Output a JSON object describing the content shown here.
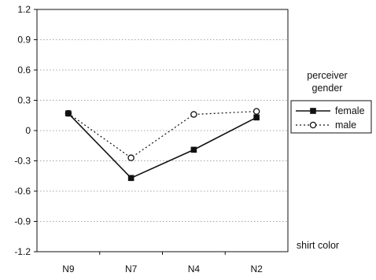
{
  "chart_data": {
    "type": "line",
    "title": "",
    "xlabel": "shirt color",
    "ylabel": "",
    "categories": [
      "N9",
      "N7",
      "N4",
      "N2"
    ],
    "ylim": [
      -1.2,
      1.2
    ],
    "yticks": [
      1.2,
      0.9,
      0.6,
      0.3,
      0,
      -0.3,
      -0.6,
      -0.9,
      -1.2
    ],
    "ytick_labels": [
      "1.2",
      "0.9",
      "0.6",
      "0.3",
      "0",
      "-0.3",
      "-0.6",
      "-0.9",
      "-1.2"
    ],
    "grid": "horizontal dotted",
    "legend_title_lines": [
      "perceiver",
      "gender"
    ],
    "legend_position": "right",
    "series": [
      {
        "name": "female",
        "values": [
          0.17,
          -0.47,
          -0.19,
          0.13
        ],
        "line_style": "solid",
        "marker": "filled-square",
        "color": "#111111"
      },
      {
        "name": "male",
        "values": [
          0.17,
          -0.27,
          0.16,
          0.19
        ],
        "line_style": "dotted",
        "marker": "open-circle",
        "color": "#111111"
      }
    ]
  }
}
